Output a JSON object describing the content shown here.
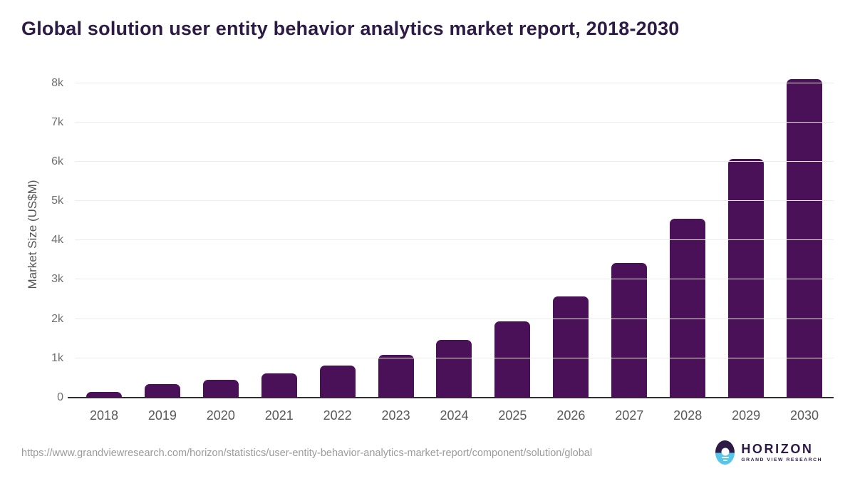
{
  "title": "Global solution user entity behavior analytics market report, 2018-2030",
  "chart_data": {
    "type": "bar",
    "title": "Global solution user entity behavior analytics market report, 2018-2030",
    "categories": [
      "2018",
      "2019",
      "2020",
      "2021",
      "2022",
      "2023",
      "2024",
      "2025",
      "2026",
      "2027",
      "2028",
      "2029",
      "2030"
    ],
    "values": [
      150,
      340,
      450,
      610,
      820,
      1080,
      1470,
      1940,
      2580,
      3430,
      4550,
      6080,
      8100
    ],
    "xlabel": "",
    "ylabel": "Market Size (US$M)",
    "ylim": [
      0,
      8300
    ],
    "yticks": [
      {
        "label": "0",
        "value": 0
      },
      {
        "label": "1k",
        "value": 1000
      },
      {
        "label": "2k",
        "value": 2000
      },
      {
        "label": "3k",
        "value": 3000
      },
      {
        "label": "4k",
        "value": 4000
      },
      {
        "label": "5k",
        "value": 5000
      },
      {
        "label": "6k",
        "value": 6000
      },
      {
        "label": "7k",
        "value": 7000
      },
      {
        "label": "8k",
        "value": 8000
      }
    ],
    "grid": "horizontal",
    "legend": "none",
    "bar_color": "#4a1158"
  },
  "colors": {
    "title_text": "#2d1b46",
    "bar": "#4a1158",
    "axis_text": "#58595b",
    "gridline": "#ececec",
    "logo_purple": "#2e1a47",
    "logo_blue": "#56c6ea"
  },
  "footer": {
    "source_url": "https://www.grandviewresearch.com/horizon/statistics/user-entity-behavior-analytics-market-report/component/solution/global",
    "logo": {
      "name": "HORIZON",
      "subtitle": "GRAND VIEW RESEARCH"
    }
  }
}
